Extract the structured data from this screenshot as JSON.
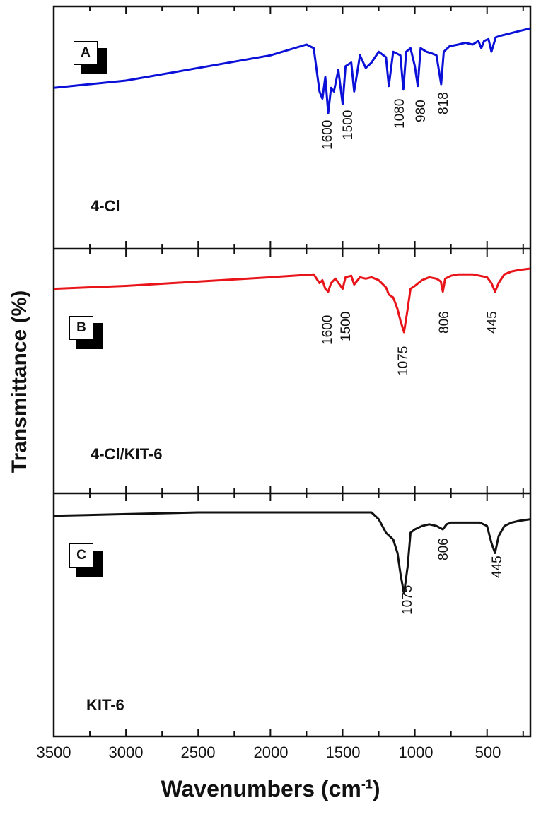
{
  "chart_data": [
    {
      "panel": "A",
      "type": "line",
      "sample": "4-Cl",
      "color": "#0a10d8",
      "xlabel": "Wavenumbers (cm-1)",
      "ylabel": "Transmittance (%)",
      "xlim": [
        3500,
        200
      ],
      "x_reversed": true,
      "grid": false,
      "peak_annotations": [
        1600,
        1500,
        1080,
        980,
        818
      ],
      "x": [
        3500,
        3000,
        2500,
        2000,
        1750,
        1700,
        1660,
        1640,
        1620,
        1600,
        1580,
        1560,
        1530,
        1500,
        1480,
        1440,
        1420,
        1380,
        1340,
        1300,
        1250,
        1200,
        1180,
        1150,
        1100,
        1080,
        1060,
        1030,
        1000,
        980,
        960,
        920,
        880,
        850,
        818,
        800,
        760,
        700,
        650,
        600,
        560,
        540,
        520,
        490,
        470,
        440,
        400,
        350,
        300,
        250,
        200
      ],
      "y": [
        62,
        66,
        73,
        80,
        86,
        84,
        60,
        56,
        68,
        48,
        62,
        60,
        72,
        53,
        74,
        76,
        60,
        80,
        73,
        76,
        82,
        79,
        63,
        82,
        80,
        61,
        82,
        84,
        74,
        63,
        84,
        82,
        81,
        80,
        64,
        82,
        85,
        86,
        87,
        86,
        88,
        84,
        88,
        89,
        82,
        90,
        91,
        92,
        93,
        94,
        95
      ]
    },
    {
      "panel": "B",
      "type": "line",
      "sample": "4-Cl/KIT-6",
      "color": "#e8141a",
      "xlabel": "Wavenumbers (cm-1)",
      "ylabel": "Transmittance (%)",
      "xlim": [
        3500,
        200
      ],
      "x_reversed": true,
      "grid": false,
      "peak_annotations": [
        1600,
        1500,
        1075,
        806,
        445
      ],
      "x": [
        3500,
        3000,
        2500,
        2000,
        1700,
        1660,
        1640,
        1620,
        1600,
        1580,
        1550,
        1500,
        1480,
        1440,
        1420,
        1380,
        1340,
        1300,
        1250,
        1200,
        1180,
        1150,
        1120,
        1100,
        1075,
        1050,
        1030,
        1000,
        950,
        900,
        850,
        820,
        806,
        790,
        750,
        700,
        650,
        600,
        550,
        500,
        470,
        445,
        420,
        380,
        330,
        280,
        200
      ],
      "y": [
        72,
        74,
        77,
        80,
        82,
        76,
        78,
        72,
        70,
        76,
        79,
        72,
        80,
        81,
        75,
        80,
        79,
        80,
        78,
        73,
        68,
        66,
        58,
        50,
        42,
        58,
        72,
        74,
        78,
        80,
        79,
        77,
        70,
        79,
        81,
        82,
        82,
        82,
        81,
        80,
        76,
        70,
        76,
        82,
        84,
        85,
        86
      ]
    },
    {
      "panel": "C",
      "type": "line",
      "sample": "KIT-6",
      "color": "#111111",
      "xlabel": "Wavenumbers (cm-1)",
      "ylabel": "Transmittance (%)",
      "xlim": [
        3500,
        200
      ],
      "x_reversed": true,
      "grid": false,
      "peak_annotations": [
        1075,
        806,
        445
      ],
      "x": [
        3500,
        3000,
        2500,
        2000,
        1500,
        1300,
        1250,
        1200,
        1150,
        1120,
        1100,
        1075,
        1050,
        1030,
        1000,
        950,
        900,
        850,
        806,
        780,
        750,
        700,
        600,
        550,
        500,
        470,
        445,
        420,
        380,
        330,
        280,
        200
      ],
      "y": [
        86,
        87,
        88,
        88,
        88,
        88,
        84,
        76,
        72,
        64,
        52,
        40,
        56,
        76,
        78,
        80,
        81,
        80,
        78,
        81,
        82,
        82,
        82,
        82,
        80,
        70,
        64,
        74,
        80,
        82,
        83,
        84
      ]
    }
  ],
  "figure": {
    "ylabel": "Transmittance (%)",
    "xlabel_main": "Wavenumbers (cm",
    "xlabel_sup": "-1",
    "xlabel_close": ")",
    "xticks": [
      "3500",
      "3000",
      "2500",
      "2000",
      "1500",
      "1000",
      "500"
    ],
    "panels": [
      {
        "tag": "A",
        "sample": "4-Cl",
        "peaks": [
          "1600",
          "1500",
          "1080",
          "980",
          "818"
        ]
      },
      {
        "tag": "B",
        "sample": "4-Cl/KIT-6",
        "peaks": [
          "1600",
          "1500",
          "1075",
          "806",
          "445"
        ]
      },
      {
        "tag": "C",
        "sample": "KIT-6",
        "peaks": [
          "1075",
          "806",
          "445"
        ]
      }
    ]
  }
}
